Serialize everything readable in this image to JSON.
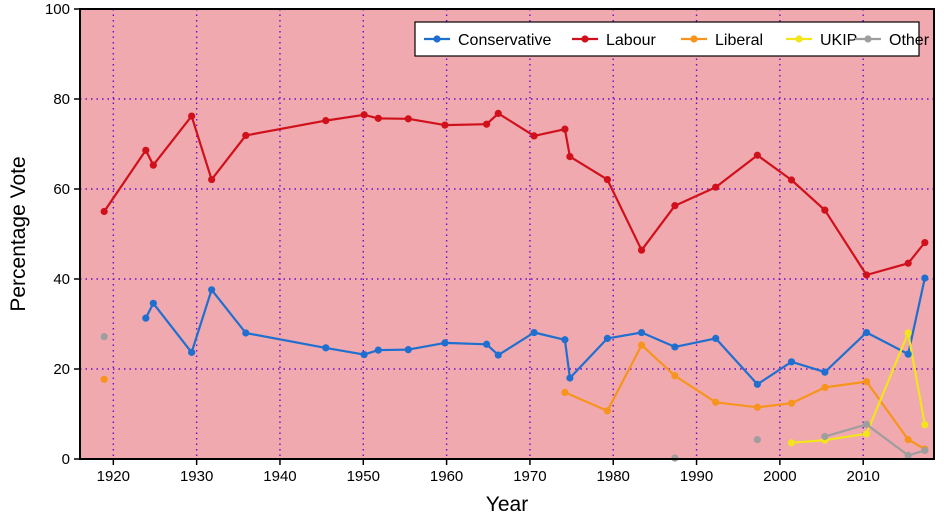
{
  "chart_data": {
    "type": "line",
    "title": "",
    "xlabel": "Year",
    "ylabel": "Percentage Vote",
    "xlim": [
      1916,
      2018.5
    ],
    "ylim": [
      0,
      100
    ],
    "x_ticks": [
      1920,
      1930,
      1940,
      1950,
      1960,
      1970,
      1980,
      1990,
      2000,
      2010
    ],
    "y_ticks": [
      0,
      20,
      40,
      60,
      80,
      100
    ],
    "grid": true,
    "legend_position": "top-right",
    "background_color": "#f0a9ae",
    "grid_color": "#6a0dcc",
    "series": [
      {
        "name": "Conservative",
        "color": "#1f6fd1",
        "points": [
          [
            1923.9,
            31.3
          ],
          [
            1924.8,
            34.6
          ],
          [
            1929.4,
            23.7
          ],
          [
            1931.8,
            37.6
          ],
          [
            1935.9,
            28.0
          ],
          [
            1945.5,
            24.7
          ],
          [
            1950.1,
            23.2
          ],
          [
            1951.8,
            24.2
          ],
          [
            1955.4,
            24.3
          ],
          [
            1959.8,
            25.8
          ],
          [
            1964.8,
            25.5
          ],
          [
            1966.2,
            23.1
          ],
          [
            1970.5,
            28.1
          ],
          [
            1974.2,
            26.5
          ],
          [
            1974.8,
            18.0
          ],
          [
            1979.3,
            26.8
          ],
          [
            1983.4,
            28.1
          ],
          [
            1987.4,
            24.9
          ],
          [
            1992.3,
            26.8
          ],
          [
            1997.3,
            16.6
          ],
          [
            2001.4,
            21.6
          ],
          [
            2005.4,
            19.3
          ],
          [
            2010.4,
            28.1
          ],
          [
            2015.4,
            23.3
          ],
          [
            2017.4,
            40.2
          ]
        ]
      },
      {
        "name": "Labour",
        "color": "#d0111c",
        "points": [
          [
            1918.9,
            55.0
          ],
          [
            1923.9,
            68.6
          ],
          [
            1924.8,
            65.3
          ],
          [
            1929.4,
            76.2
          ],
          [
            1931.8,
            62.1
          ],
          [
            1935.9,
            71.9
          ],
          [
            1945.5,
            75.2
          ],
          [
            1950.1,
            76.5
          ],
          [
            1951.8,
            75.7
          ],
          [
            1955.4,
            75.6
          ],
          [
            1959.8,
            74.2
          ],
          [
            1964.8,
            74.4
          ],
          [
            1966.2,
            76.8
          ],
          [
            1970.5,
            71.8
          ],
          [
            1974.2,
            73.3
          ],
          [
            1974.8,
            67.2
          ],
          [
            1979.3,
            62.1
          ],
          [
            1983.4,
            46.4
          ],
          [
            1987.4,
            56.3
          ],
          [
            1992.3,
            60.4
          ],
          [
            1997.3,
            67.5
          ],
          [
            2001.4,
            62.0
          ],
          [
            2005.4,
            55.3
          ],
          [
            2010.4,
            40.9
          ],
          [
            2015.4,
            43.5
          ],
          [
            2017.4,
            48.1
          ]
        ]
      },
      {
        "name": "Liberal",
        "color": "#f7941d",
        "points": [
          [
            1918.9,
            17.7
          ],
          [
            1974.2,
            14.8
          ],
          [
            1979.3,
            10.7
          ],
          [
            1983.4,
            25.3
          ],
          [
            1987.4,
            18.5
          ],
          [
            1992.3,
            12.6
          ],
          [
            1997.3,
            11.5
          ],
          [
            2001.4,
            12.4
          ],
          [
            2005.4,
            15.9
          ],
          [
            2010.4,
            17.2
          ],
          [
            2015.4,
            4.3
          ],
          [
            2017.4,
            2.2
          ]
        ]
      },
      {
        "name": "UKIP",
        "color": "#f2e51b",
        "points": [
          [
            2001.4,
            3.6
          ],
          [
            2005.4,
            4.2
          ],
          [
            2010.4,
            5.6
          ],
          [
            2015.4,
            28.0
          ],
          [
            2017.4,
            7.6
          ]
        ]
      },
      {
        "name": "Other",
        "color": "#9e9e9e",
        "points": [
          [
            1918.9,
            27.2
          ],
          [
            1987.4,
            0.2
          ],
          [
            1997.3,
            4.3
          ],
          [
            2005.4,
            5.0
          ],
          [
            2010.4,
            7.7
          ],
          [
            2015.4,
            0.8
          ],
          [
            2017.4,
            1.9
          ]
        ],
        "segments": [
          [
            [
              2005.4,
              5.0
            ],
            [
              2010.4,
              7.7
            ],
            [
              2015.4,
              0.8
            ],
            [
              2017.4,
              1.9
            ]
          ]
        ]
      }
    ]
  }
}
